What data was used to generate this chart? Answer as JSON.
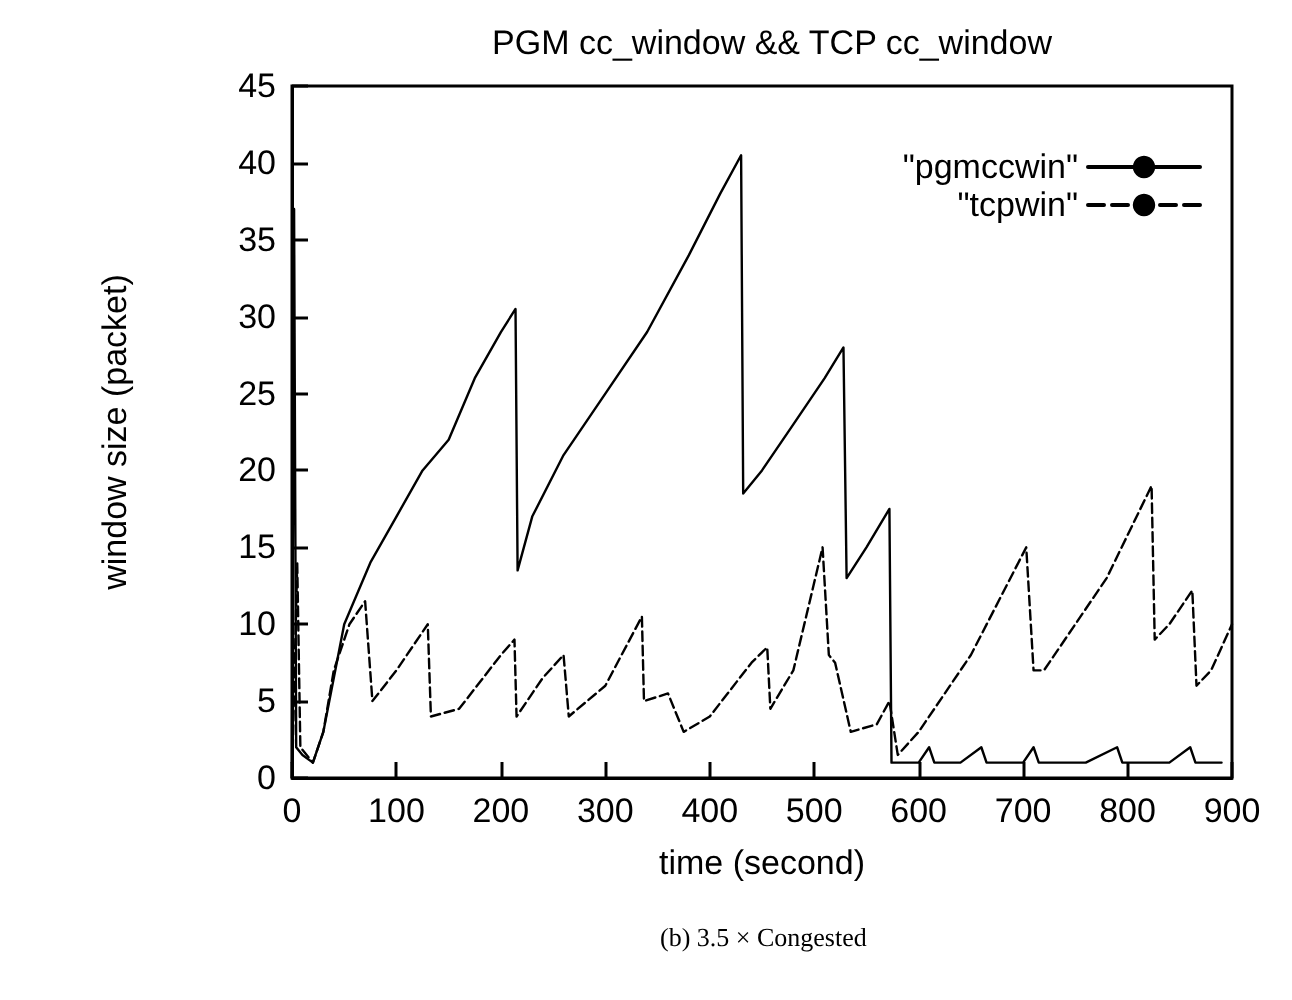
{
  "chart_data": {
    "type": "line",
    "title": "PGM cc_window && TCP cc_window",
    "xlabel": "time (second)",
    "ylabel": "window size (packet)",
    "annotations": [
      "(b) 3.5 × Congested"
    ],
    "xlim": [
      0,
      900
    ],
    "xticks": [
      0,
      100,
      200,
      300,
      400,
      500,
      600,
      700,
      800,
      900
    ],
    "ylim": [
      0,
      45
    ],
    "yticks": [
      0,
      5,
      10,
      15,
      20,
      25,
      30,
      35,
      40,
      45
    ],
    "grid": false,
    "legend": "top right",
    "marker": "none",
    "series": [
      {
        "name": "\"pgmccwin\"",
        "color": "#000000",
        "line_style": "solid",
        "x": [
          0,
          2,
          4,
          10,
          20,
          30,
          50,
          75,
          100,
          125,
          150,
          175,
          200,
          214,
          216,
          230,
          260,
          300,
          340,
          380,
          410,
          430,
          432,
          450,
          480,
          510,
          528,
          531,
          550,
          572,
          574,
          600,
          610,
          615,
          640,
          660,
          665,
          700,
          710,
          715,
          760,
          790,
          795,
          840,
          860,
          865,
          890
        ],
        "values": [
          1,
          37,
          2,
          1.5,
          1,
          3,
          10,
          14,
          17,
          20,
          22,
          26,
          29,
          30.5,
          13.5,
          17,
          21,
          25,
          29,
          34,
          38,
          40.5,
          18.5,
          20,
          23,
          26,
          28,
          13,
          15,
          17.5,
          1,
          1,
          2,
          1,
          1,
          2,
          1,
          1,
          2,
          1,
          1,
          2,
          1,
          1,
          2,
          1,
          1
        ]
      },
      {
        "name": "\"tcpwin\"",
        "color": "#000000",
        "line_style": "dashed",
        "x": [
          0,
          5,
          8,
          20,
          30,
          40,
          55,
          70,
          77,
          100,
          130,
          133,
          160,
          200,
          213,
          215,
          240,
          260,
          265,
          300,
          335,
          337,
          360,
          375,
          400,
          440,
          455,
          458,
          480,
          508,
          514,
          520,
          535,
          560,
          572,
          580,
          600,
          650,
          703,
          710,
          720,
          780,
          823,
          826,
          840,
          862,
          866,
          880,
          900
        ],
        "values": [
          0,
          14,
          2,
          1,
          3,
          7,
          10,
          11.5,
          5,
          7,
          10,
          4,
          4.5,
          8,
          9,
          4,
          6.5,
          8,
          4,
          6,
          10.5,
          5,
          5.5,
          3,
          4,
          7.5,
          8.5,
          4.5,
          7,
          15,
          8,
          7.5,
          3,
          3.5,
          5,
          1.5,
          3,
          8,
          15,
          7,
          7,
          13,
          19,
          9,
          10,
          12.2,
          6,
          7,
          10
        ]
      }
    ]
  }
}
